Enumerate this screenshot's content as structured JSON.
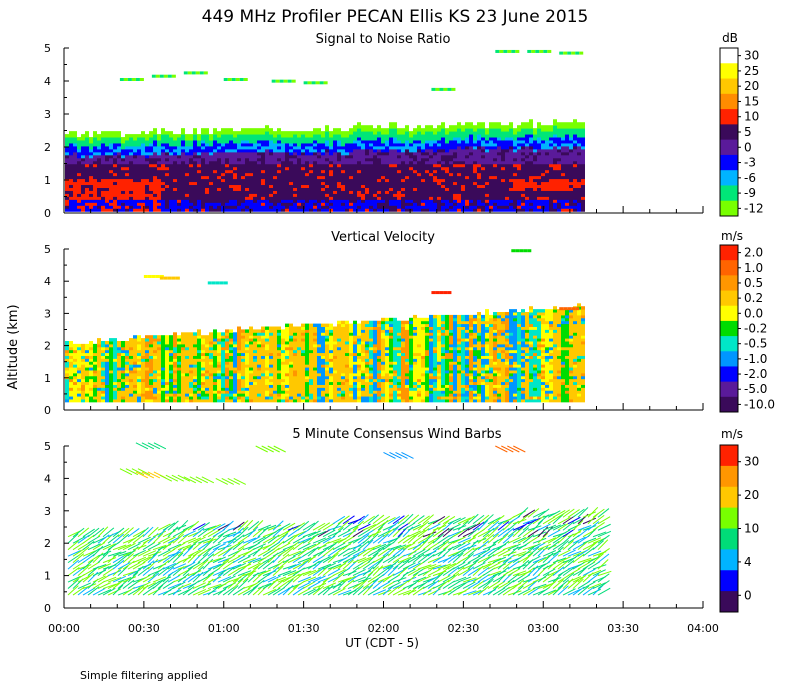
{
  "figure": {
    "title": "449 MHz Profiler PECAN Ellis KS 23 June 2015",
    "xlabel": "UT  (CDT - 5)",
    "ylabel": "Altitude (km)",
    "footnote": "Simple filtering applied",
    "x_ticks": [
      "00:00",
      "00:30",
      "01:00",
      "01:30",
      "02:00",
      "02:30",
      "03:00",
      "03:30",
      "04:00"
    ],
    "y_ticks": [
      "0",
      "1",
      "2",
      "3",
      "4",
      "5"
    ]
  },
  "chart_data": [
    {
      "type": "heatmap",
      "title": "Signal to Noise Ratio",
      "colorbar_unit": "dB",
      "colorbar_labels": [
        "30",
        "25",
        "20",
        "15",
        "10",
        "5",
        "0",
        "-3",
        "-6",
        "-9",
        "-12"
      ],
      "colorbar_colors": [
        "#ffffff",
        "#ffff00",
        "#ffc800",
        "#ff8c00",
        "#ff2200",
        "#3a0a5a",
        "#5a1a9a",
        "#0000ff",
        "#00b4ff",
        "#00e678",
        "#78ff00"
      ],
      "xlim_hours": [
        0,
        4
      ],
      "ylim_km": [
        0,
        5
      ],
      "data_end_hours": 3.25,
      "layers": [
        {
          "from_km": 0.3,
          "to_km": 1.0,
          "color": "#ff2200"
        },
        {
          "from_km": 0.3,
          "to_km": 1.4,
          "color": "#3a0a5a"
        },
        {
          "from_km": 1.4,
          "to_km": 1.7,
          "color": "#5a1a9a"
        },
        {
          "from_km": 1.7,
          "to_km": 1.95,
          "color": "#0000ff"
        },
        {
          "from_km": 1.95,
          "to_km": 2.2,
          "color": "#00e678"
        },
        {
          "from_km": 2.2,
          "to_km": 2.5,
          "color": "#78ff00"
        }
      ],
      "sparse_echo_km": [
        4.0,
        4.2
      ]
    },
    {
      "type": "heatmap",
      "title": "Vertical Velocity",
      "colorbar_unit": "m/s",
      "colorbar_labels": [
        "2.0",
        "1.0",
        "0.5",
        "0.2",
        "0.0",
        "-0.2",
        "-0.5",
        "-1.0",
        "-2.0",
        "-5.0",
        "-10.0"
      ],
      "colorbar_colors": [
        "#ff2200",
        "#ff6400",
        "#ff9600",
        "#ffc800",
        "#ffff00",
        "#00dc00",
        "#00e6c8",
        "#0096ff",
        "#0000ff",
        "#5a1a9a",
        "#3a0a5a"
      ],
      "xlim_hours": [
        0,
        4
      ],
      "ylim_km": [
        0,
        5
      ],
      "data_end_hours": 3.25,
      "top_km_start": 2.05,
      "top_km_end": 3.2,
      "dominant_colors": [
        "#ffc800",
        "#ff9600",
        "#00dc00",
        "#00e6c8",
        "#ffff00"
      ]
    },
    {
      "type": "scatter",
      "title": "5 Minute Consensus Wind Barbs",
      "colorbar_unit": "m/s",
      "colorbar_labels": [
        "30",
        "20",
        "10",
        "4",
        "0"
      ],
      "colorbar_colors": [
        "#ff2200",
        "#ff9600",
        "#ffc800",
        "#78ff00",
        "#00dc78",
        "#00b4ff",
        "#0000ff",
        "#3a0a5a"
      ],
      "xlim_hours": [
        0,
        4
      ],
      "ylim_km": [
        0,
        5
      ],
      "data_end_hours": 3.35
    }
  ]
}
